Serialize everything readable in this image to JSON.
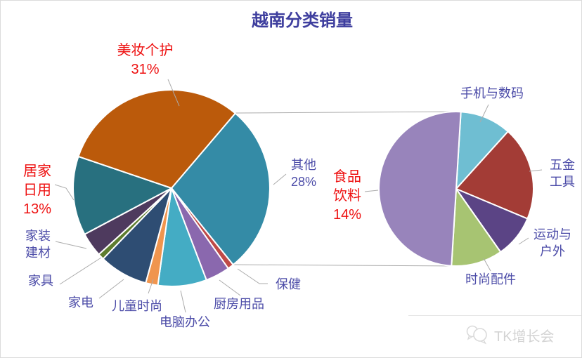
{
  "title": "越南分类销量",
  "watermark": {
    "text": "TK增长会",
    "icon": "chat-bubbles-icon"
  },
  "colors": {
    "title_text": "#3e3e9e",
    "label_blue": "#4c4ca8",
    "label_red": "#ee1111",
    "leader_line": "#ababab",
    "slice_border": "#ffffff",
    "watermark_text": "#d4d4d4",
    "canvas_border": "#dcdcdc"
  },
  "labels": {
    "beauty": {
      "lines": [
        "美妆个护",
        "31%"
      ]
    },
    "home_daily": {
      "lines": [
        "居家",
        "日用",
        "13%"
      ]
    },
    "home_improvement": {
      "lines": [
        "家装",
        "建材"
      ]
    },
    "furniture": {
      "lines": [
        "家具"
      ]
    },
    "appliances": {
      "lines": [
        "家电"
      ]
    },
    "kids_fashion": {
      "lines": [
        "儿童时尚"
      ]
    },
    "computer_office": {
      "lines": [
        "电脑办公"
      ]
    },
    "kitchen": {
      "lines": [
        "厨房用品"
      ]
    },
    "health": {
      "lines": [
        "保健"
      ]
    },
    "other": {
      "lines": [
        "其他",
        "28%"
      ]
    },
    "food_beverage": {
      "lines": [
        "食品",
        "饮料",
        "14%"
      ]
    },
    "phone_digital": {
      "lines": [
        "手机与数码"
      ]
    },
    "hardware_tools": {
      "lines": [
        "五金",
        "工具"
      ]
    },
    "sports_outdoor": {
      "lines": [
        "运动与",
        "户外"
      ]
    },
    "fashion_accessories": {
      "lines": [
        "时尚配件"
      ]
    }
  },
  "chart_data": {
    "type": "pie",
    "variant": "pie-of-pie",
    "title": "越南分类销量",
    "unit": "percent_of_total_sales",
    "legend": "none (leader-line labels around pies)",
    "labeled_percentages": {
      "美妆个护": "31%",
      "其他": "28%",
      "居家日用": "13%",
      "食品饮料": "14%"
    },
    "main_pie": {
      "start_angle_deg": 40.4,
      "slices": [
        {
          "key": "other",
          "label": "其他",
          "value": 28,
          "labeled_pct": "28%",
          "color": "#348ba6"
        },
        {
          "key": "health",
          "label": "保健",
          "value": 1,
          "estimated": true,
          "color": "#bf4a47"
        },
        {
          "key": "kitchen",
          "label": "厨房用品",
          "value": 4,
          "estimated": true,
          "color": "#8a68ae"
        },
        {
          "key": "computer_office",
          "label": "电脑办公",
          "value": 8,
          "estimated": true,
          "color": "#44acc4"
        },
        {
          "key": "kids_fashion",
          "label": "儿童时尚",
          "value": 2,
          "estimated": true,
          "color": "#f0954e"
        },
        {
          "key": "appliances",
          "label": "家电",
          "value": 8,
          "estimated": true,
          "color": "#2e4d73"
        },
        {
          "key": "furniture",
          "label": "家具",
          "value": 1,
          "estimated": true,
          "color": "#5e7d2f"
        },
        {
          "key": "home_improvement",
          "label": "家装建材",
          "value": 4,
          "estimated": true,
          "color": "#4e3a5e"
        },
        {
          "key": "home_daily",
          "label": "居家日用",
          "value": 13,
          "labeled_pct": "13%",
          "color": "#28707f"
        },
        {
          "key": "beauty",
          "label": "美妆个护",
          "value": 31,
          "labeled_pct": "31%",
          "color": "#bb5a0b"
        }
      ]
    },
    "breakdown_pie": {
      "represents": "其他",
      "start_angle_deg": 3.5,
      "slices": [
        {
          "key": "phone_digital",
          "label": "手机与数码",
          "value": 3,
          "estimated": true,
          "color": "#6fbed2"
        },
        {
          "key": "hardware_tools",
          "label": "五金工具",
          "value": 5.5,
          "estimated": true,
          "color": "#a33c36"
        },
        {
          "key": "sports_outdoor",
          "label": "运动与户外",
          "value": 2.5,
          "estimated": true,
          "color": "#5b4485"
        },
        {
          "key": "fashion_accessories",
          "label": "时尚配件",
          "value": 3,
          "estimated": true,
          "color": "#a7c472"
        },
        {
          "key": "food_beverage",
          "label": "食品饮料",
          "value": 14,
          "labeled_pct": "14%",
          "color": "#9884bb"
        }
      ]
    }
  }
}
